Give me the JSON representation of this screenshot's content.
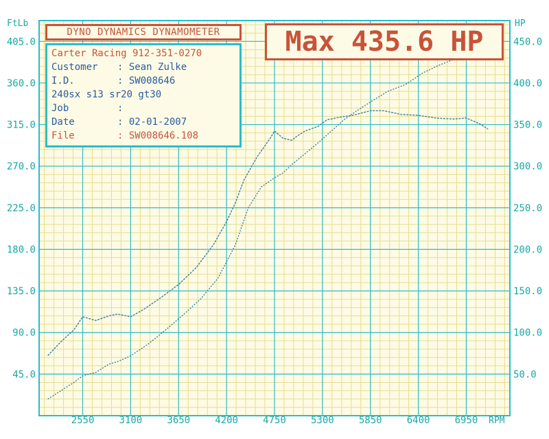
{
  "header": {
    "brand": "DYNO DYNAMICS DYNAMOMETER",
    "max_label": "Max 435.6 HP"
  },
  "info": {
    "shop": "Carter Racing 912-351-0270",
    "rows": [
      {
        "label": "Customer",
        "sep": ":",
        "value": "Sean Zulke"
      },
      {
        "label": "I.D.",
        "sep": ":",
        "value": "SW008646"
      },
      {
        "label": "240sx s13 sr20 gt30",
        "sep": "",
        "value": ""
      },
      {
        "label": "Job",
        "sep": ":",
        "value": ""
      },
      {
        "label": "Date",
        "sep": ":",
        "value": "02-01-2007"
      },
      {
        "label": "File",
        "sep": ":",
        "value": "SW008646.108"
      }
    ]
  },
  "colors": {
    "grid": "#2bbcc8",
    "minor_grid": "#e6dd8a",
    "curve": "#3a7fa0",
    "paper": "#fdfbe6",
    "accent": "#c8533a"
  },
  "chart_data": {
    "type": "line",
    "title": "",
    "xlabel": "RPM",
    "ylabel_left": "FtLb",
    "ylabel_right": "HP",
    "xlim": [
      2050,
      7450
    ],
    "ylim_left": [
      0,
      427.5
    ],
    "ylim_right": [
      0,
      475
    ],
    "x_ticks": [
      2550,
      3100,
      3650,
      4200,
      4750,
      5300,
      5850,
      6400,
      6950
    ],
    "x_tick_labels": [
      "2550",
      "3100",
      "3650",
      "4200",
      "4750",
      "5300",
      "5850",
      "6400",
      "6950"
    ],
    "y_left_ticks": [
      45,
      90,
      135,
      180,
      225,
      270,
      315,
      360,
      405
    ],
    "y_left_tick_labels": [
      "45.0",
      "90.0",
      "135.0",
      "180.0",
      "225.0",
      "270.0",
      "315.0",
      "360.0",
      "405.0"
    ],
    "y_right_ticks": [
      50,
      100,
      150,
      200,
      250,
      300,
      350,
      400,
      450
    ],
    "y_right_tick_labels": [
      "50.0",
      "100.0",
      "150.0",
      "200.0",
      "250.0",
      "300.0",
      "350.0",
      "400.0",
      "450.0"
    ],
    "grid": true,
    "series": [
      {
        "axis": "left",
        "x": [
          2150,
          2300,
          2450,
          2550,
          2700,
          2850,
          2950,
          3100,
          3250,
          3450,
          3650,
          3850,
          4050,
          4200,
          4300,
          4400,
          4550,
          4700,
          4750,
          4850,
          4950,
          5000,
          5100,
          5250,
          5350,
          5500,
          5650,
          5850,
          6000,
          6200,
          6400,
          6600,
          6800,
          6950,
          7100,
          7200
        ],
        "y": [
          65,
          80,
          93,
          107,
          103,
          108,
          110,
          107,
          115,
          128,
          142,
          160,
          185,
          210,
          230,
          255,
          280,
          300,
          308,
          300,
          298,
          302,
          308,
          313,
          320,
          323,
          325,
          330,
          330,
          326,
          325,
          322,
          321,
          322,
          316,
          310
        ]
      },
      {
        "axis": "right",
        "x": [
          2150,
          2300,
          2450,
          2550,
          2700,
          2850,
          2950,
          3100,
          3300,
          3500,
          3700,
          3900,
          4100,
          4300,
          4450,
          4600,
          4750,
          4850,
          4950,
          5100,
          5250,
          5400,
          5550,
          5700,
          5850,
          6050,
          6250,
          6450,
          6650,
          6850,
          6950,
          7050,
          7150,
          7200
        ],
        "y": [
          20,
          30,
          40,
          48,
          52,
          62,
          65,
          72,
          86,
          103,
          121,
          140,
          165,
          205,
          250,
          275,
          286,
          292,
          302,
          315,
          328,
          342,
          356,
          367,
          377,
          390,
          398,
          412,
          422,
          430,
          432,
          435.6,
          433,
          430
        ]
      }
    ]
  }
}
